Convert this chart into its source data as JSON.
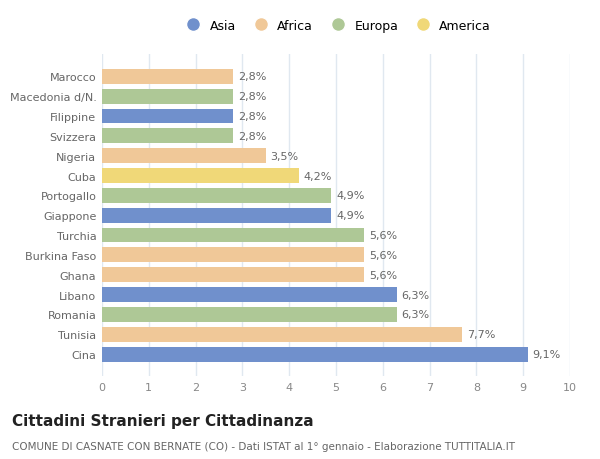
{
  "categories": [
    "Marocco",
    "Macedonia d/N.",
    "Filippine",
    "Svizzera",
    "Nigeria",
    "Cuba",
    "Portogallo",
    "Giappone",
    "Turchia",
    "Burkina Faso",
    "Ghana",
    "Libano",
    "Romania",
    "Tunisia",
    "Cina"
  ],
  "values": [
    2.8,
    2.8,
    2.8,
    2.8,
    3.5,
    4.2,
    4.9,
    4.9,
    5.6,
    5.6,
    5.6,
    6.3,
    6.3,
    7.7,
    9.1
  ],
  "labels": [
    "2,8%",
    "2,8%",
    "2,8%",
    "2,8%",
    "3,5%",
    "4,2%",
    "4,9%",
    "4,9%",
    "5,6%",
    "5,6%",
    "5,6%",
    "6,3%",
    "6,3%",
    "7,7%",
    "9,1%"
  ],
  "colors": [
    "#f0c898",
    "#aec896",
    "#7090cc",
    "#aec896",
    "#f0c898",
    "#f0d878",
    "#aec896",
    "#7090cc",
    "#aec896",
    "#f0c898",
    "#f0c898",
    "#7090cc",
    "#aec896",
    "#f0c898",
    "#7090cc"
  ],
  "continent_colors": {
    "Asia": "#7090cc",
    "Africa": "#f0c898",
    "Europa": "#aec896",
    "America": "#f0d878"
  },
  "xlim": [
    0,
    10
  ],
  "xticks": [
    0,
    1,
    2,
    3,
    4,
    5,
    6,
    7,
    8,
    9,
    10
  ],
  "title": "Cittadini Stranieri per Cittadinanza",
  "subtitle": "COMUNE DI CASNATE CON BERNATE (CO) - Dati ISTAT al 1° gennaio - Elaborazione TUTTITALIA.IT",
  "background_color": "#ffffff",
  "bar_height": 0.75,
  "grid_color": "#e0e8f0",
  "label_fontsize": 8,
  "tick_fontsize": 8,
  "title_fontsize": 11,
  "subtitle_fontsize": 7.5
}
